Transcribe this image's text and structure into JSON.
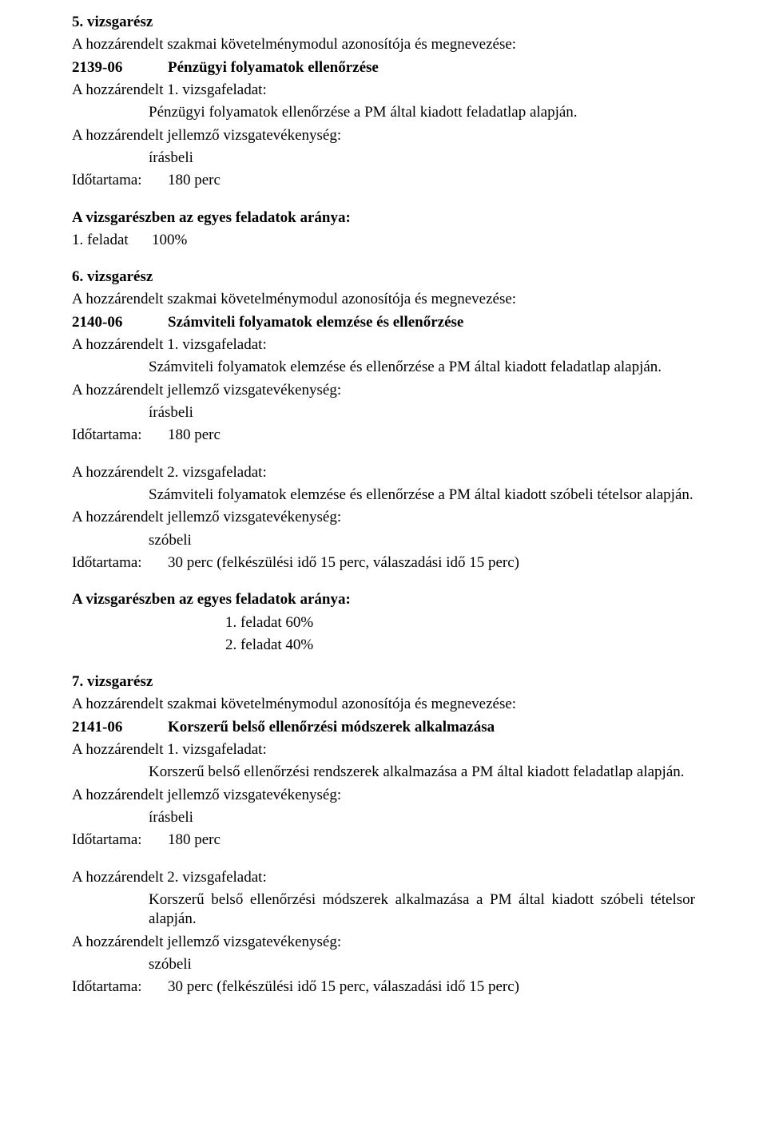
{
  "text_color": "#000000",
  "background_color": "#ffffff",
  "font_family": "Times New Roman",
  "base_font_size_pt": 14,
  "s5": {
    "heading": "5. vizsgarész",
    "module_line": "A hozzárendelt szakmai követelménymodul azonosítója és megnevezése:",
    "module_code": "2139-06",
    "module_title": "Pénzügyi folyamatok ellenőrzése",
    "task1_label": "A hozzárendelt 1. vizsgafeladat:",
    "task1_body": "Pénzügyi folyamatok ellenőrzése a PM által kiadott feladatlap alapján.",
    "activity_label": "A hozzárendelt jellemző vizsgatevékenység:",
    "activity_val": "írásbeli",
    "duration_label": "Időtartama:",
    "duration_val": "180 perc",
    "weights_heading": "A vizsgarészben az egyes feladatok aránya:",
    "weight_line1": "1. feladat",
    "weight_val1": "100%"
  },
  "s6": {
    "heading": "6. vizsgarész",
    "module_line": "A hozzárendelt szakmai követelménymodul azonosítója és megnevezése:",
    "module_code": "2140-06",
    "module_title": "Számviteli folyamatok elemzése és ellenőrzése",
    "task1_label": "A hozzárendelt 1. vizsgafeladat:",
    "task1_body": "Számviteli folyamatok elemzése és ellenőrzése a PM által kiadott feladatlap alapján.",
    "activity_label": "A hozzárendelt jellemző vizsgatevékenység:",
    "activity_val": "írásbeli",
    "duration_label": "Időtartama:",
    "duration_val": "180 perc",
    "task2_label": "A hozzárendelt 2. vizsgafeladat:",
    "task2_body": "Számviteli folyamatok elemzése és ellenőrzése a PM által kiadott szóbeli tételsor alapján.",
    "activity2_label": "A hozzárendelt jellemző vizsgatevékenység:",
    "activity2_val": "szóbeli",
    "duration2_label": "Időtartama:",
    "duration2_val": "30 perc (felkészülési idő 15 perc, válaszadási idő 15 perc)",
    "weights_heading": "A vizsgarészben az egyes feladatok aránya:",
    "weight_line1": "1. feladat 60%",
    "weight_line2": "2. feladat 40%"
  },
  "s7": {
    "heading": "7. vizsgarész",
    "module_line": "A hozzárendelt szakmai követelménymodul azonosítója és megnevezése:",
    "module_code": "2141-06",
    "module_title": "Korszerű belső ellenőrzési módszerek alkalmazása",
    "task1_label": "A hozzárendelt 1. vizsgafeladat:",
    "task1_body": "Korszerű belső ellenőrzési rendszerek alkalmazása a PM által kiadott feladatlap alapján.",
    "activity_label": "A hozzárendelt jellemző vizsgatevékenység:",
    "activity_val": "írásbeli",
    "duration_label": "Időtartama:",
    "duration_val": "180 perc",
    "task2_label": "A hozzárendelt 2. vizsgafeladat:",
    "task2_body": "Korszerű belső ellenőrzési módszerek alkalmazása a PM által kiadott szóbeli tételsor alapján.",
    "activity2_label": "A hozzárendelt jellemző vizsgatevékenység:",
    "activity2_val": "szóbeli",
    "duration2_label": "Időtartama:",
    "duration2_val": "30 perc (felkészülési idő 15 perc, válaszadási idő 15 perc)"
  }
}
